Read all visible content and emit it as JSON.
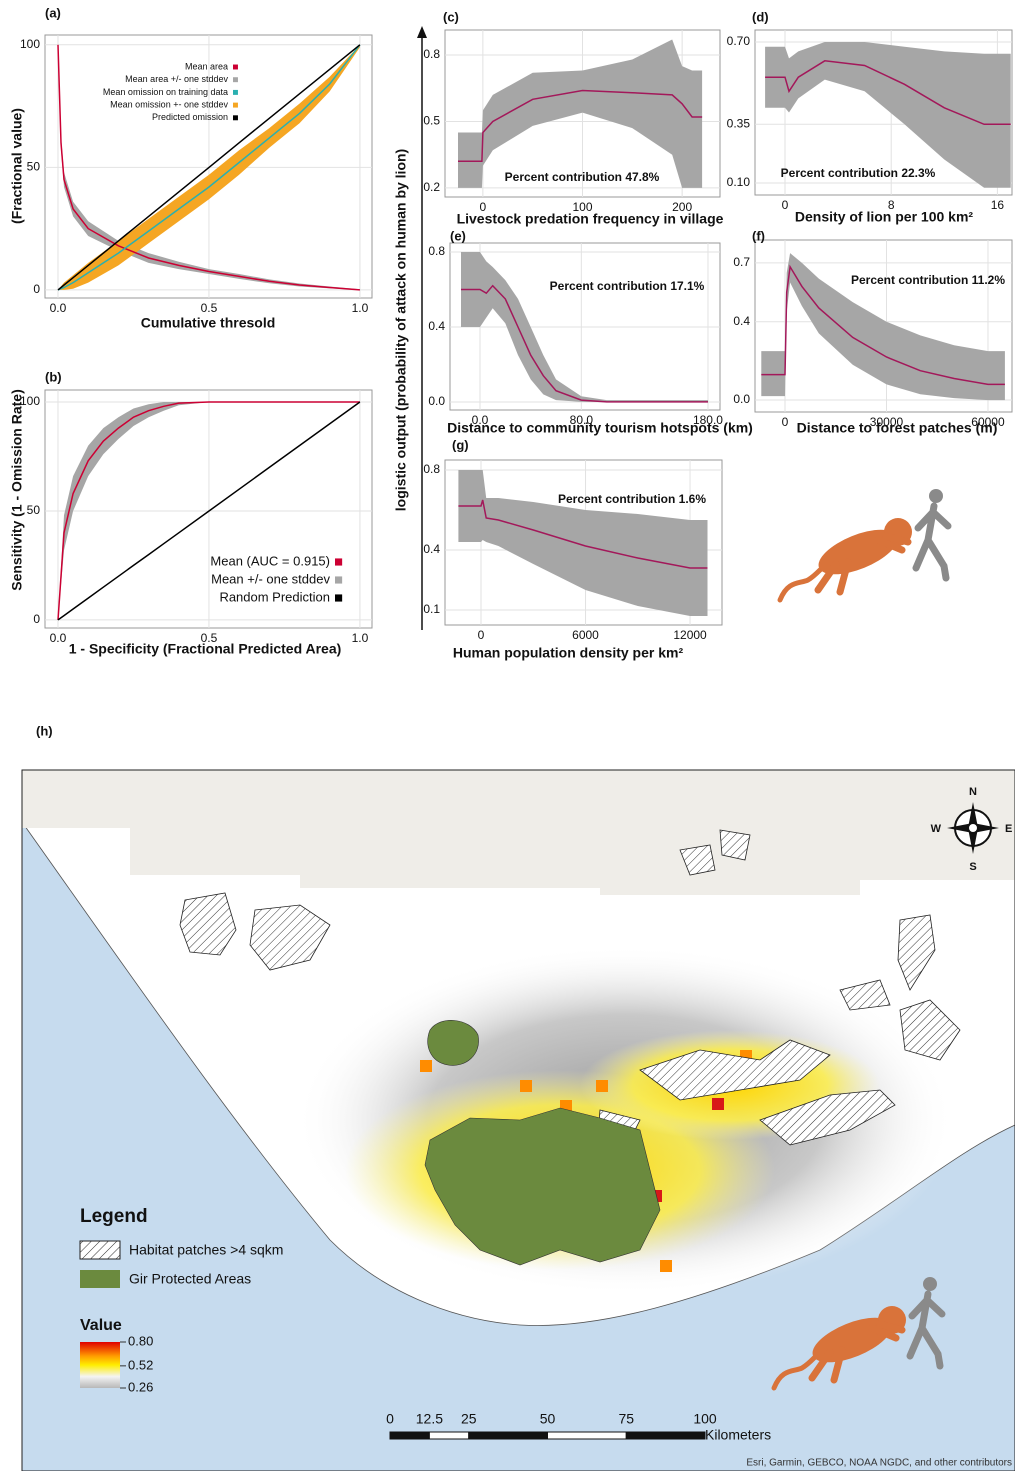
{
  "ylabel_shared": "logistic output (probability of attack on human by lion)",
  "chart_data": [
    {
      "type": "line",
      "title": "(a)",
      "xlabel": "Cumulative thresold",
      "ylabel": "(Fractional value)",
      "x": [
        0,
        0.01,
        0.02,
        0.05,
        0.1,
        0.2,
        0.3,
        0.4,
        0.5,
        0.6,
        0.7,
        0.8,
        0.9,
        1.0
      ],
      "xlim": [
        -0.043,
        1.04
      ],
      "ylim": [
        -3.3,
        104
      ],
      "xticks": [
        {
          "value": 0,
          "label": "0.0"
        },
        0.5,
        {
          "value": 1,
          "label": "1.0"
        }
      ],
      "yticks": [
        0,
        50,
        100
      ],
      "grid": true,
      "series": [
        {
          "name": "Mean area",
          "color": "#cc0033",
          "type": "line",
          "values": [
            100,
            60,
            45,
            33,
            25,
            18,
            13,
            10,
            7.5,
            5.5,
            3.5,
            2,
            1,
            0
          ]
        },
        {
          "name": "Mean area +/- one stddev",
          "color": "#a6a6a6",
          "type": "band",
          "upper": [
            100,
            63,
            48,
            36,
            28,
            20,
            15,
            11.5,
            8.5,
            6.5,
            4.3,
            2.6,
            1.4,
            0.3
          ],
          "lower": [
            100,
            57,
            42,
            30,
            22,
            16,
            11,
            8.5,
            6.5,
            4.5,
            2.7,
            1.4,
            0.6,
            0
          ]
        },
        {
          "name": "Mean omission on training data",
          "color": "#2ab0b0",
          "type": "line",
          "values": [
            0,
            0.5,
            1,
            3,
            7,
            15,
            24,
            33,
            42,
            52,
            62,
            72,
            84,
            100
          ]
        },
        {
          "name": "Mean omission +- one stddev",
          "color": "#f5a623",
          "type": "band",
          "upper": [
            0,
            1.5,
            3,
            6,
            11,
            20,
            29,
            38,
            47,
            57,
            66,
            76,
            87,
            100
          ],
          "lower": [
            0,
            0,
            0,
            0.5,
            3,
            10,
            19,
            28,
            37,
            47,
            58,
            68,
            81,
            99
          ]
        },
        {
          "name": "Predicted omission",
          "color": "#000000",
          "type": "line",
          "values": [
            0,
            1,
            2,
            5,
            10,
            20,
            30,
            40,
            50,
            60,
            70,
            80,
            90,
            100
          ]
        }
      ]
    },
    {
      "type": "line",
      "title": "(b)",
      "xlabel": "1 - Specificity (Fractional Predicted Area)",
      "ylabel": "Sensitivity (1 - Omission Rate)",
      "x": [
        0,
        0.02,
        0.05,
        0.1,
        0.15,
        0.2,
        0.25,
        0.3,
        0.35,
        0.4,
        0.5,
        0.7,
        1.0
      ],
      "xlim": [
        -0.043,
        1.04
      ],
      "ylim": [
        -3.7,
        105.5
      ],
      "xticks": [
        {
          "value": 0,
          "label": "0.0"
        },
        0.5,
        {
          "value": 1,
          "label": "1.0"
        }
      ],
      "yticks": [
        0,
        50,
        100
      ],
      "grid": true,
      "series": [
        {
          "name": "Mean (AUC = 0.915)",
          "color": "#cc0033",
          "type": "line",
          "values": [
            0,
            40,
            58,
            73,
            82,
            88,
            93,
            96,
            98,
            99.5,
            100,
            100,
            100
          ]
        },
        {
          "name": "Mean +/- one stddev",
          "color": "#a6a6a6",
          "type": "band",
          "upper": [
            0,
            48,
            66,
            80,
            88,
            93,
            97,
            99,
            100,
            100,
            100,
            100,
            100
          ],
          "lower": [
            0,
            32,
            50,
            66,
            76,
            83,
            89,
            93,
            96,
            98.5,
            100,
            100,
            100
          ]
        },
        {
          "name": "Random Prediction",
          "color": "#000000",
          "type": "line",
          "values": [
            0,
            2,
            5,
            10,
            15,
            20,
            25,
            30,
            35,
            40,
            50,
            70,
            100
          ]
        }
      ]
    },
    {
      "type": "line",
      "title": "(c)",
      "xlabel": "Livestock predation frequency in village",
      "annotation": "Percent contribution 47.8%",
      "x": [
        -25,
        -1,
        0,
        10,
        50,
        100,
        150,
        190,
        200,
        210,
        220
      ],
      "xlim": [
        -38,
        238
      ],
      "ylim": [
        0.159,
        0.913
      ],
      "xticks": [
        0,
        100,
        200
      ],
      "yticks": [
        0.2,
        0.5,
        0.8
      ],
      "grid": true,
      "series": [
        {
          "color": "#a6a6a6",
          "type": "band",
          "upper": [
            0.45,
            0.45,
            0.55,
            0.62,
            0.72,
            0.73,
            0.78,
            0.87,
            0.75,
            0.73,
            0.73
          ],
          "lower": [
            0.2,
            0.2,
            0.3,
            0.37,
            0.48,
            0.54,
            0.47,
            0.35,
            0.2,
            0.2,
            0.2
          ]
        },
        {
          "color": "#a3185a",
          "type": "line",
          "values": [
            0.32,
            0.32,
            0.45,
            0.5,
            0.6,
            0.64,
            0.63,
            0.62,
            0.58,
            0.52,
            0.52
          ]
        }
      ]
    },
    {
      "type": "line",
      "title": "(d)",
      "xlabel": "Density of lion per 100 km²",
      "annotation": "Percent contribution 22.3%",
      "x": [
        -1.5,
        0,
        0.3,
        1,
        3,
        6,
        9,
        12,
        15,
        17
      ],
      "xlim": [
        -2.26,
        17.1
      ],
      "ylim": [
        0.049,
        0.751
      ],
      "xticks": [
        0,
        8,
        16
      ],
      "yticks": [
        {
          "value": 0.1,
          "label": "0.10"
        },
        0.35,
        {
          "value": 0.7,
          "label": "0.70"
        }
      ],
      "grid": true,
      "series": [
        {
          "color": "#a6a6a6",
          "type": "band",
          "upper": [
            0.68,
            0.68,
            0.63,
            0.66,
            0.7,
            0.7,
            0.68,
            0.66,
            0.65,
            0.65
          ],
          "lower": [
            0.42,
            0.42,
            0.4,
            0.46,
            0.54,
            0.49,
            0.35,
            0.2,
            0.08,
            0.08
          ]
        },
        {
          "color": "#a3185a",
          "type": "line",
          "values": [
            0.55,
            0.55,
            0.49,
            0.55,
            0.62,
            0.6,
            0.52,
            0.42,
            0.35,
            0.35
          ]
        }
      ]
    },
    {
      "type": "line",
      "title": "(e)",
      "xlabel": "Distance to community tourism hotspots (km)",
      "annotation": "Percent contribution 17.1%",
      "x": [
        -15,
        0,
        5,
        10,
        20,
        30,
        40,
        50,
        60,
        80,
        100,
        180
      ],
      "xlim": [
        -23.7,
        189.5
      ],
      "ylim": [
        -0.043,
        0.848
      ],
      "xticks": [
        {
          "value": 0,
          "label": "0.0"
        },
        {
          "value": 80,
          "label": "80.0"
        },
        {
          "value": 180,
          "label": "180.0"
        }
      ],
      "yticks": [
        {
          "value": 0,
          "label": "0.0"
        },
        0.4,
        0.8
      ],
      "grid": true,
      "series": [
        {
          "color": "#a6a6a6",
          "type": "band",
          "upper": [
            0.8,
            0.8,
            0.75,
            0.72,
            0.65,
            0.55,
            0.4,
            0.25,
            0.12,
            0.03,
            0.01,
            0.01
          ],
          "lower": [
            0.4,
            0.4,
            0.45,
            0.5,
            0.42,
            0.25,
            0.12,
            0.04,
            0.01,
            0,
            0,
            0
          ]
        },
        {
          "color": "#a3185a",
          "type": "line",
          "values": [
            0.6,
            0.6,
            0.58,
            0.62,
            0.55,
            0.4,
            0.25,
            0.14,
            0.06,
            0.01,
            0,
            0
          ]
        }
      ]
    },
    {
      "type": "line",
      "title": "(f)",
      "xlabel": "Distance to forest patches (m)",
      "annotation": "Percent contribution 11.2%",
      "x": [
        -7000,
        0,
        500,
        1500,
        5000,
        10000,
        20000,
        30000,
        40000,
        50000,
        60000,
        65000
      ],
      "xlim": [
        -8867,
        67100
      ],
      "ylim": [
        -0.061,
        0.817
      ],
      "xticks": [
        0,
        30000,
        60000
      ],
      "yticks": [
        {
          "value": 0,
          "label": "0.0"
        },
        0.4,
        0.7
      ],
      "grid": true,
      "series": [
        {
          "color": "#a6a6a6",
          "type": "band",
          "upper": [
            0.25,
            0.25,
            0.65,
            0.75,
            0.7,
            0.62,
            0.5,
            0.4,
            0.33,
            0.28,
            0.25,
            0.25
          ],
          "lower": [
            0.02,
            0.02,
            0.45,
            0.6,
            0.48,
            0.34,
            0.18,
            0.08,
            0.03,
            0.01,
            0,
            0
          ]
        },
        {
          "color": "#a3185a",
          "type": "line",
          "values": [
            0.13,
            0.13,
            0.55,
            0.68,
            0.58,
            0.47,
            0.32,
            0.22,
            0.15,
            0.11,
            0.08,
            0.08
          ]
        }
      ]
    },
    {
      "type": "line",
      "title": "(g)",
      "xlabel": "Human population density per km²",
      "annotation": "Percent contribution 1.6%",
      "x": [
        -1300,
        0,
        100,
        300,
        1000,
        3000,
        6000,
        9000,
        12000,
        13000
      ],
      "xlim": [
        -2067,
        13835
      ],
      "ylim": [
        0.025,
        0.85
      ],
      "xticks": [
        0,
        6000,
        12000
      ],
      "yticks": [
        0.1,
        0.4,
        0.8
      ],
      "grid": true,
      "series": [
        {
          "color": "#a6a6a6",
          "type": "band",
          "upper": [
            0.8,
            0.8,
            0.8,
            0.66,
            0.66,
            0.64,
            0.6,
            0.58,
            0.55,
            0.55
          ],
          "lower": [
            0.44,
            0.44,
            0.45,
            0.44,
            0.42,
            0.33,
            0.2,
            0.12,
            0.07,
            0.07
          ]
        },
        {
          "color": "#a3185a",
          "type": "line",
          "values": [
            0.62,
            0.62,
            0.65,
            0.56,
            0.55,
            0.5,
            0.42,
            0.36,
            0.31,
            0.31
          ]
        }
      ]
    }
  ],
  "map": {
    "title": "(h)",
    "legend_title": "Legend",
    "legend_items": [
      "Habitat patches >4 sqkm",
      "Gir Protected Areas"
    ],
    "value_title": "Value",
    "value_range": [
      0.26,
      0.8
    ],
    "value_ticks": [
      {
        "value": 0.8,
        "label": "0.80"
      },
      0.52,
      0.26
    ],
    "scale_ticks": [
      0,
      12.5,
      25,
      50,
      75,
      100
    ],
    "scale_unit": "Kilometers",
    "compass": [
      "N",
      "E",
      "S",
      "W"
    ],
    "attribution": "Esri, Garmin, GEBCO, NOAA NGDC, and other contributors"
  }
}
